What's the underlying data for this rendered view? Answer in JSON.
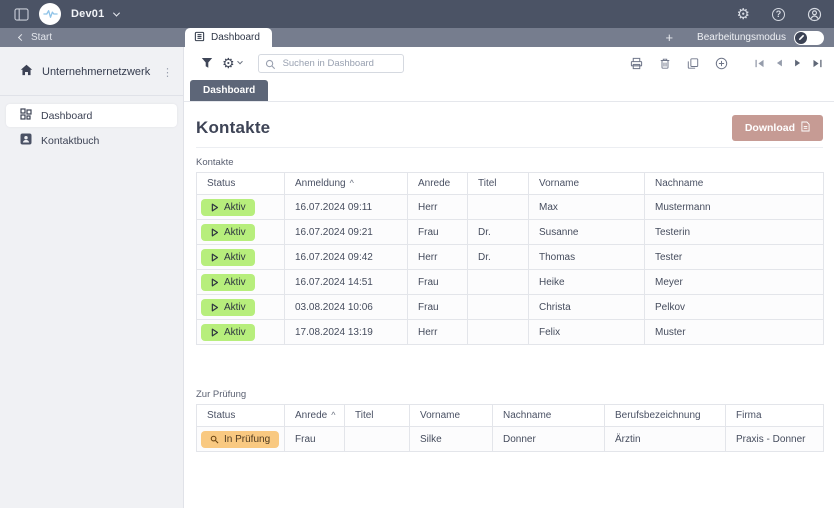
{
  "topbar": {
    "workspace": "Dev01"
  },
  "tabbar": {
    "back_label": "Start",
    "active_tab": "Dashboard",
    "add_label": "+",
    "edit_mode_label": "Bearbeitungsmodus"
  },
  "sidebar": {
    "network_label": "Unternehmernetzwerk",
    "items": [
      "Dashboard",
      "Kontaktbuch"
    ],
    "active_item": "Dashboard"
  },
  "toolbar": {
    "search_placeholder": "Suchen in Dashboard"
  },
  "page_tab": "Dashboard",
  "page": {
    "title": "Kontakte",
    "download_label": "Download"
  },
  "tables": [
    {
      "label": "Kontakte",
      "columns": [
        {
          "label": "Status"
        },
        {
          "label": "Anmeldung",
          "sort": "asc"
        },
        {
          "label": "Anrede"
        },
        {
          "label": "Titel"
        },
        {
          "label": "Vorname"
        },
        {
          "label": "Nachname"
        }
      ],
      "rows": [
        {
          "status": {
            "label": "Aktiv",
            "type": "active"
          },
          "cells": [
            "16.07.2024 09:11",
            "Herr",
            "",
            "Max",
            "Mustermann"
          ]
        },
        {
          "status": {
            "label": "Aktiv",
            "type": "active"
          },
          "cells": [
            "16.07.2024 09:21",
            "Frau",
            "Dr.",
            "Susanne",
            "Testerin"
          ]
        },
        {
          "status": {
            "label": "Aktiv",
            "type": "active"
          },
          "cells": [
            "16.07.2024 09:42",
            "Herr",
            "Dr.",
            "Thomas",
            "Tester"
          ]
        },
        {
          "status": {
            "label": "Aktiv",
            "type": "active"
          },
          "cells": [
            "16.07.2024 14:51",
            "Frau",
            "",
            "Heike",
            "Meyer"
          ]
        },
        {
          "status": {
            "label": "Aktiv",
            "type": "active"
          },
          "cells": [
            "03.08.2024 10:06",
            "Frau",
            "",
            "Christa",
            "Pelkov"
          ]
        },
        {
          "status": {
            "label": "Aktiv",
            "type": "active"
          },
          "cells": [
            "17.08.2024 13:19",
            "Herr",
            "",
            "Felix",
            "Muster"
          ]
        }
      ]
    },
    {
      "label": "Zur Prüfung",
      "columns": [
        {
          "label": "Status"
        },
        {
          "label": "Anrede",
          "sort": "asc"
        },
        {
          "label": "Titel"
        },
        {
          "label": "Vorname"
        },
        {
          "label": "Nachname"
        },
        {
          "label": "Berufsbezeichnung"
        },
        {
          "label": "Firma"
        }
      ],
      "rows": [
        {
          "status": {
            "label": "In Prüfung",
            "type": "review"
          },
          "cells": [
            "Frau",
            "",
            "Silke",
            "Donner",
            "Ärztin",
            "Praxis - Donner"
          ]
        }
      ]
    }
  ],
  "colors": {
    "topbar": "#4b5365",
    "tabbar": "#767d8e",
    "status_active": "#b7ee7c",
    "status_review": "#f9c981",
    "download_button": "#c69b94"
  }
}
